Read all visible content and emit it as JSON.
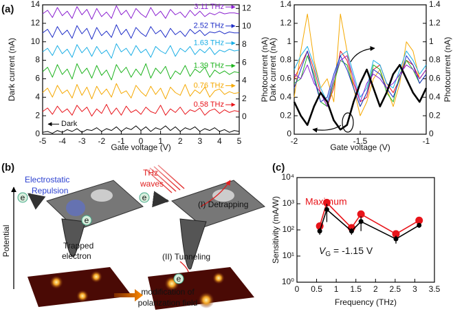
{
  "panel_labels": [
    "(a)",
    "(b)",
    "(c)"
  ],
  "chart_data": [
    {
      "type": "line",
      "xlabel": "Gate voltage (V)",
      "ylabel": "Dark current (nA)",
      "y2label": "Photocurrent (nA)",
      "x": [
        -5,
        -4.75,
        -4.5,
        -4.25,
        -4,
        -3.75,
        -3.5,
        -3.25,
        -3,
        -2.75,
        -2.5,
        -2.25,
        -2,
        -1.75,
        -1.5,
        -1.25,
        -1,
        -0.75,
        -0.5,
        -0.25,
        0,
        0.25,
        0.5,
        0.75,
        1,
        1.25,
        1.5,
        1.75,
        2,
        2.25,
        2.5,
        2.75,
        3,
        3.25,
        3.5,
        3.75,
        4,
        4.25,
        4.5,
        4.75,
        5
      ],
      "xlim": [
        -5,
        5
      ],
      "xticks": [
        -5,
        -4,
        -3,
        -2,
        -1,
        0,
        1,
        2,
        3,
        4,
        5
      ],
      "ylim": [
        0,
        14
      ],
      "yticks": [
        0,
        2,
        4,
        6,
        8,
        10,
        12,
        14
      ],
      "y2lim": [
        -1.9,
        12.4
      ],
      "y2ticks": [
        0,
        2,
        4,
        6,
        8,
        10,
        12
      ],
      "series": [
        {
          "name": "Dark",
          "color": "#000000",
          "values": [
            0.2,
            0.3,
            0.1,
            0.4,
            0.2,
            0.5,
            0.3,
            0.6,
            0.2,
            0.5,
            0.4,
            0.7,
            0.3,
            0.6,
            0.4,
            0.8,
            0.3,
            0.7,
            0.5,
            0.9,
            0.4,
            0.8,
            0.3,
            0.7,
            0.5,
            0.9,
            0.4,
            0.8,
            0.3,
            0.7,
            0.5,
            0.8,
            0.3,
            0.6,
            0.4,
            0.7,
            0.3,
            0.5,
            0.2,
            0.4,
            0.3
          ]
        },
        {
          "name": "0.58 THz",
          "color": "#e8141a",
          "axis": "y2",
          "values": [
            0.6,
            1.0,
            0.3,
            1.2,
            0.5,
            0.9,
            0.2,
            1.3,
            0.6,
            1.1,
            0.1,
            0.9,
            0.4,
            1.4,
            0.3,
            1.0,
            0.2,
            1.2,
            0.5,
            0.8,
            0.3,
            1.1,
            0.6,
            0.4,
            1.3,
            0.2,
            0.9,
            0.5,
            1.1,
            0.3,
            0.8,
            0.6,
            1.0,
            0.2,
            0.7,
            0.9,
            0.4,
            0.8,
            0.5,
            0.7,
            0.6
          ]
        },
        {
          "name": "0.76 THz",
          "color": "#f5a800",
          "axis": "y2",
          "values": [
            2.7,
            3.2,
            2.2,
            3.5,
            2.6,
            3.0,
            2.1,
            3.6,
            2.4,
            3.3,
            2.0,
            3.4,
            2.5,
            3.1,
            2.2,
            3.7,
            2.6,
            2.9,
            2.1,
            3.5,
            2.8,
            2.3,
            3.4,
            2.5,
            3.2,
            2.0,
            3.3,
            2.7,
            2.4,
            3.6,
            2.3,
            3.0,
            2.6,
            3.3,
            2.2,
            2.9,
            3.1,
            2.5,
            2.8,
            2.6,
            2.7
          ]
        },
        {
          "name": "1.39 THz",
          "color": "#1db31d",
          "axis": "y2",
          "values": [
            5.0,
            5.5,
            4.4,
            5.8,
            4.7,
            5.3,
            4.2,
            5.9,
            4.8,
            5.4,
            4.3,
            5.7,
            4.6,
            5.2,
            4.1,
            5.8,
            4.9,
            5.5,
            4.4,
            5.3,
            4.6,
            5.9,
            4.3,
            5.4,
            4.8,
            5.6,
            4.2,
            5.1,
            4.7,
            5.7,
            4.5,
            5.3,
            4.9,
            5.5,
            4.4,
            5.2,
            4.8,
            5.1,
            4.7,
            5.0,
            4.9
          ]
        },
        {
          "name": "1.63 THz",
          "color": "#1aaee5",
          "axis": "y2",
          "values": [
            7.2,
            7.6,
            6.8,
            7.9,
            7.0,
            7.5,
            6.6,
            8.0,
            7.1,
            7.7,
            6.7,
            7.8,
            7.0,
            7.4,
            6.5,
            8.1,
            7.2,
            7.6,
            6.8,
            7.9,
            7.1,
            7.5,
            6.6,
            7.8,
            7.3,
            7.0,
            7.9,
            6.7,
            7.6,
            7.2,
            7.8,
            6.9,
            7.5,
            7.1,
            7.7,
            6.9,
            7.4,
            7.2,
            7.5,
            7.3,
            7.4
          ]
        },
        {
          "name": "2.52 THz",
          "color": "#1f2ec8",
          "axis": "y2",
          "values": [
            9.3,
            9.7,
            8.8,
            10.0,
            9.1,
            9.6,
            8.7,
            10.1,
            9.2,
            9.8,
            8.6,
            9.9,
            9.0,
            9.5,
            8.8,
            10.2,
            9.1,
            9.7,
            8.7,
            9.9,
            9.3,
            8.9,
            10.0,
            9.2,
            9.6,
            8.8,
            9.8,
            9.1,
            9.5,
            8.9,
            9.7,
            9.2,
            9.6,
            9.0,
            9.4,
            9.3,
            9.5,
            9.2,
            9.4,
            9.3,
            9.3
          ]
        },
        {
          "name": "3.11 THz",
          "color": "#8a1fd0",
          "axis": "y2",
          "values": [
            11.4,
            11.8,
            11.0,
            12.1,
            11.2,
            11.7,
            10.9,
            12.2,
            11.3,
            11.9,
            10.8,
            12.0,
            11.1,
            11.6,
            10.9,
            12.3,
            11.3,
            11.8,
            10.9,
            12.0,
            11.4,
            11.0,
            12.1,
            11.2,
            11.7,
            10.9,
            11.9,
            11.3,
            11.6,
            11.0,
            11.8,
            11.2,
            11.7,
            11.1,
            11.5,
            11.3,
            11.6,
            11.4,
            11.5,
            11.5,
            11.4
          ]
        }
      ]
    },
    {
      "type": "line",
      "xlabel": "Gate voltage (V)",
      "ylabel": "Dark current (nA)",
      "y2label": "Photocurrent (nA)",
      "x": [
        -2,
        -1.95,
        -1.9,
        -1.85,
        -1.8,
        -1.75,
        -1.7,
        -1.65,
        -1.6,
        -1.55,
        -1.5,
        -1.45,
        -1.4,
        -1.35,
        -1.3,
        -1.25,
        -1.2,
        -1.15,
        -1.1,
        -1.05,
        -1
      ],
      "xlim": [
        -2,
        -1
      ],
      "xticks": [
        -2,
        -1.5,
        -1
      ],
      "ylim": [
        0,
        1.4
      ],
      "yticks": [
        0,
        0.2,
        0.4,
        0.6,
        0.8,
        1,
        1.2,
        1.4
      ],
      "y2lim": [
        0,
        1.4
      ],
      "y2ticks": [
        0,
        0.2,
        0.4,
        0.6,
        0.8,
        1,
        1.2,
        1.4
      ],
      "series": [
        {
          "color": "#e8141a",
          "axis": "y2",
          "values": [
            0.6,
            0.75,
            0.9,
            0.7,
            0.45,
            0.3,
            0.5,
            0.9,
            0.8,
            0.55,
            0.35,
            0.4,
            0.7,
            0.75,
            0.55,
            0.45,
            0.6,
            0.8,
            0.75,
            0.6,
            0.7
          ]
        },
        {
          "color": "#f5a800",
          "axis": "y2",
          "values": [
            0.4,
            0.9,
            1.3,
            0.8,
            0.5,
            0.6,
            0.35,
            1.3,
            0.9,
            0.5,
            0.2,
            0.35,
            0.6,
            0.7,
            0.5,
            0.3,
            0.55,
            1.0,
            0.9,
            0.6,
            0.7
          ]
        },
        {
          "color": "#1db31d",
          "axis": "y2",
          "values": [
            0.55,
            0.6,
            0.85,
            0.65,
            0.35,
            0.3,
            0.55,
            0.8,
            0.75,
            0.5,
            0.3,
            0.45,
            0.75,
            0.7,
            0.45,
            0.35,
            0.65,
            0.8,
            0.7,
            0.55,
            0.65
          ]
        },
        {
          "color": "#1aaee5",
          "axis": "y2",
          "values": [
            0.7,
            0.85,
            0.95,
            0.75,
            0.5,
            0.35,
            0.6,
            0.85,
            0.9,
            0.65,
            0.4,
            0.5,
            0.8,
            0.75,
            0.55,
            0.5,
            0.7,
            0.9,
            0.8,
            0.65,
            0.75
          ]
        },
        {
          "color": "#1f2ec8",
          "axis": "y2",
          "values": [
            0.5,
            0.7,
            0.9,
            0.6,
            0.35,
            0.4,
            0.65,
            0.85,
            0.7,
            0.5,
            0.3,
            0.45,
            0.7,
            0.65,
            0.5,
            0.4,
            0.6,
            0.85,
            0.75,
            0.55,
            0.65
          ]
        },
        {
          "color": "#8a1fd0",
          "axis": "y2",
          "values": [
            0.65,
            0.6,
            0.75,
            0.55,
            0.45,
            0.3,
            0.6,
            0.8,
            0.85,
            0.6,
            0.35,
            0.55,
            0.65,
            0.6,
            0.5,
            0.55,
            0.65,
            0.75,
            0.7,
            0.6,
            0.7
          ]
        },
        {
          "color": "#000000",
          "values": [
            0.35,
            0.2,
            0.1,
            0.3,
            0.45,
            0.35,
            0.15,
            0.05,
            0.1,
            0.35,
            0.55,
            0.7,
            0.5,
            0.3,
            0.45,
            0.65,
            0.75,
            0.6,
            0.45,
            0.35,
            0.5
          ]
        }
      ]
    },
    {
      "type": "line",
      "xlabel": "Frequency (THz)",
      "ylabel": "Sensitivity (mA/W)",
      "log_y": true,
      "x": [
        0.58,
        0.76,
        1.39,
        1.63,
        2.52,
        3.11
      ],
      "xlim": [
        0,
        3.5
      ],
      "xticks": [
        0,
        0.5,
        1,
        1.5,
        2,
        2.5,
        3,
        3.5
      ],
      "ylim": [
        1,
        10000
      ],
      "yticks": [
        {
          "value": 1,
          "label": "10⁰"
        },
        {
          "value": 10,
          "label": "10¹"
        },
        {
          "value": 100,
          "label": "10²"
        },
        {
          "value": 1000,
          "label": "10³"
        },
        {
          "value": 10000,
          "label": "10⁴"
        }
      ],
      "annotation": [
        "V",
        "G",
        " = -1.15 V"
      ],
      "series": [
        {
          "name": "Maximum",
          "color": "#e8141a",
          "values": [
            140,
            1100,
            120,
            400,
            70,
            230
          ]
        },
        {
          "color": "#000000",
          "values": [
            90,
            600,
            90,
            210,
            45,
            150
          ],
          "errors": [
            25,
            400,
            25,
            120,
            15,
            30
          ]
        }
      ]
    }
  ],
  "diagram": {
    "labels": [
      "Electrostatic",
      "Repulsion",
      "THz",
      "waves",
      "(I) Detrapping",
      "Trapped",
      "electron",
      "(II) Tunneling",
      "e",
      "e",
      "e",
      "e",
      "modification of",
      "polarization field",
      "Potential"
    ]
  }
}
